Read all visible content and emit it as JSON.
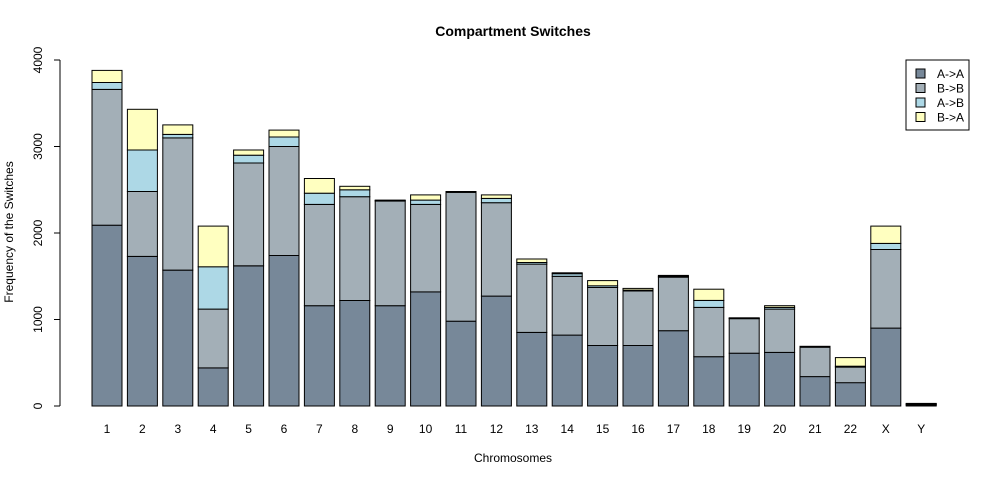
{
  "chart_data": {
    "type": "bar",
    "stacked": true,
    "title": "Compartment Switches",
    "xlabel": "Chromosomes",
    "ylabel": "Frequency of the Switches",
    "ylim": [
      0,
      4000
    ],
    "yticks": [
      0,
      1000,
      2000,
      3000,
      4000
    ],
    "legend_position": "top-right",
    "categories": [
      "1",
      "2",
      "3",
      "4",
      "5",
      "6",
      "7",
      "8",
      "9",
      "10",
      "11",
      "12",
      "13",
      "14",
      "15",
      "16",
      "17",
      "18",
      "19",
      "20",
      "21",
      "22",
      "X",
      "Y"
    ],
    "series": [
      {
        "name": "A->A",
        "color": "#778899",
        "values": [
          2090,
          1730,
          1570,
          440,
          1620,
          1740,
          1160,
          1220,
          1160,
          1320,
          980,
          1270,
          850,
          820,
          700,
          700,
          870,
          570,
          610,
          620,
          340,
          270,
          900,
          10
        ]
      },
      {
        "name": "B->B",
        "color": "#A3AFB7",
        "values": [
          1570,
          750,
          1530,
          680,
          1190,
          1260,
          1170,
          1200,
          1210,
          1010,
          1490,
          1080,
          790,
          680,
          670,
          630,
          620,
          570,
          400,
          500,
          340,
          180,
          910,
          10
        ]
      },
      {
        "name": "A->B",
        "color": "#ADD8E6",
        "values": [
          80,
          480,
          40,
          490,
          90,
          110,
          130,
          80,
          5,
          50,
          5,
          50,
          20,
          30,
          20,
          10,
          10,
          80,
          5,
          20,
          5,
          10,
          70,
          5
        ]
      },
      {
        "name": "B->A",
        "color": "#FFFFC0",
        "values": [
          140,
          470,
          110,
          470,
          60,
          80,
          170,
          40,
          5,
          60,
          5,
          40,
          40,
          10,
          60,
          20,
          10,
          130,
          5,
          20,
          5,
          100,
          200,
          5
        ]
      }
    ]
  }
}
